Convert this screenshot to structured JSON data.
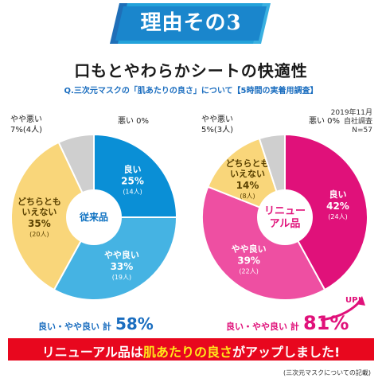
{
  "banner": {
    "title": "理由その3"
  },
  "headline": "口もとやわらかシートの快適性",
  "question": "Q.三次元マスクの「肌あたりの良さ」について【5時間の実着用調査】",
  "survey_note": "2019年11月\n自社調査\nN=57",
  "footer": {
    "prefix": "リニューアル品は",
    "highlight": "肌あたりの良さ",
    "suffix": "がアップしました!"
  },
  "footnote": "(三次元マスクについての記載)",
  "up_badge": "UP!",
  "chart_data": [
    {
      "type": "pie",
      "center_label": "従来品",
      "categories": [
        "良い",
        "やや良い",
        "どちらともいえない",
        "やや悪い",
        "悪い"
      ],
      "values": [
        25,
        33,
        35,
        7,
        0
      ],
      "counts": [
        "(14人)",
        "(19人)",
        "(20人)",
        "7%(4人)",
        "0%"
      ],
      "labels": [
        "良い",
        "やや良い",
        "どちらとも\nいえない",
        "やや悪い",
        "悪い"
      ],
      "pct_text": [
        "25%",
        "33%",
        "35%",
        "",
        ""
      ],
      "colors": [
        "#0a8fd6",
        "#45b3e3",
        "#f9d67a",
        "#cfcfcf",
        "#ffffff"
      ],
      "total_label": "良い・やや良い 計",
      "total_value": "58%"
    },
    {
      "type": "pie",
      "center_label": "リニュー\nアル品",
      "categories": [
        "良い",
        "やや良い",
        "どちらともいえない",
        "やや悪い",
        "悪い"
      ],
      "values": [
        42,
        39,
        14,
        5,
        0
      ],
      "counts": [
        "(24人)",
        "(22人)",
        "(8人)",
        "5%(3人)",
        "0%"
      ],
      "labels": [
        "良い",
        "やや良い",
        "どちらとも\nいえない",
        "やや悪い",
        "悪い"
      ],
      "pct_text": [
        "42%",
        "39%",
        "14%",
        "",
        ""
      ],
      "colors": [
        "#e0117a",
        "#ee4fa2",
        "#f9d67a",
        "#cfcfcf",
        "#ffffff"
      ],
      "total_label": "良い・やや良い 計",
      "total_value": "81%"
    }
  ]
}
